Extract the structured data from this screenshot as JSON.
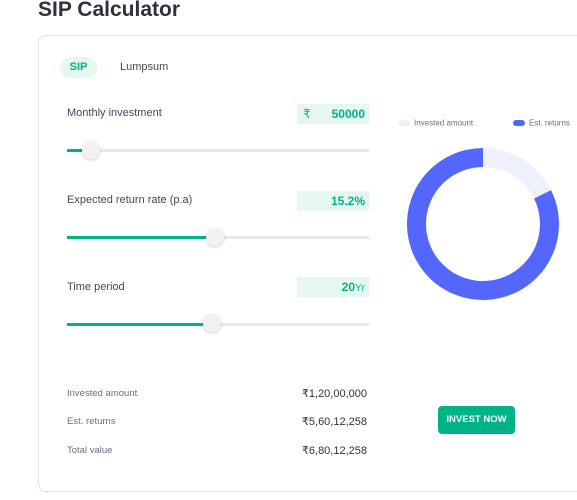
{
  "header": {
    "title": "SIP Calculator"
  },
  "tabs": [
    "SIP",
    "Lumpsum"
  ],
  "inputs": [
    {
      "label": "Monthly investment",
      "prefix": "₹",
      "value": "50000"
    },
    {
      "label": "Expected return rate (p.a)",
      "value": "15.2%"
    },
    {
      "label": "Time period",
      "value": "20",
      "suffix": "Yr"
    }
  ],
  "chart_data": {
    "type": "donut",
    "categories": [
      "Invested amount",
      "Est. returns"
    ],
    "values": [
      12000000,
      56012258
    ],
    "colors": [
      "#eef0fb",
      "#5367ff"
    ]
  },
  "summary": [
    {
      "label": "Invested amount",
      "value": "₹1,20,00,000"
    },
    {
      "label": "Est. returns",
      "value": "₹5,60,12,258"
    },
    {
      "label": "Total value",
      "value": "₹6,80,12,258"
    }
  ],
  "button": "INVEST NOW"
}
